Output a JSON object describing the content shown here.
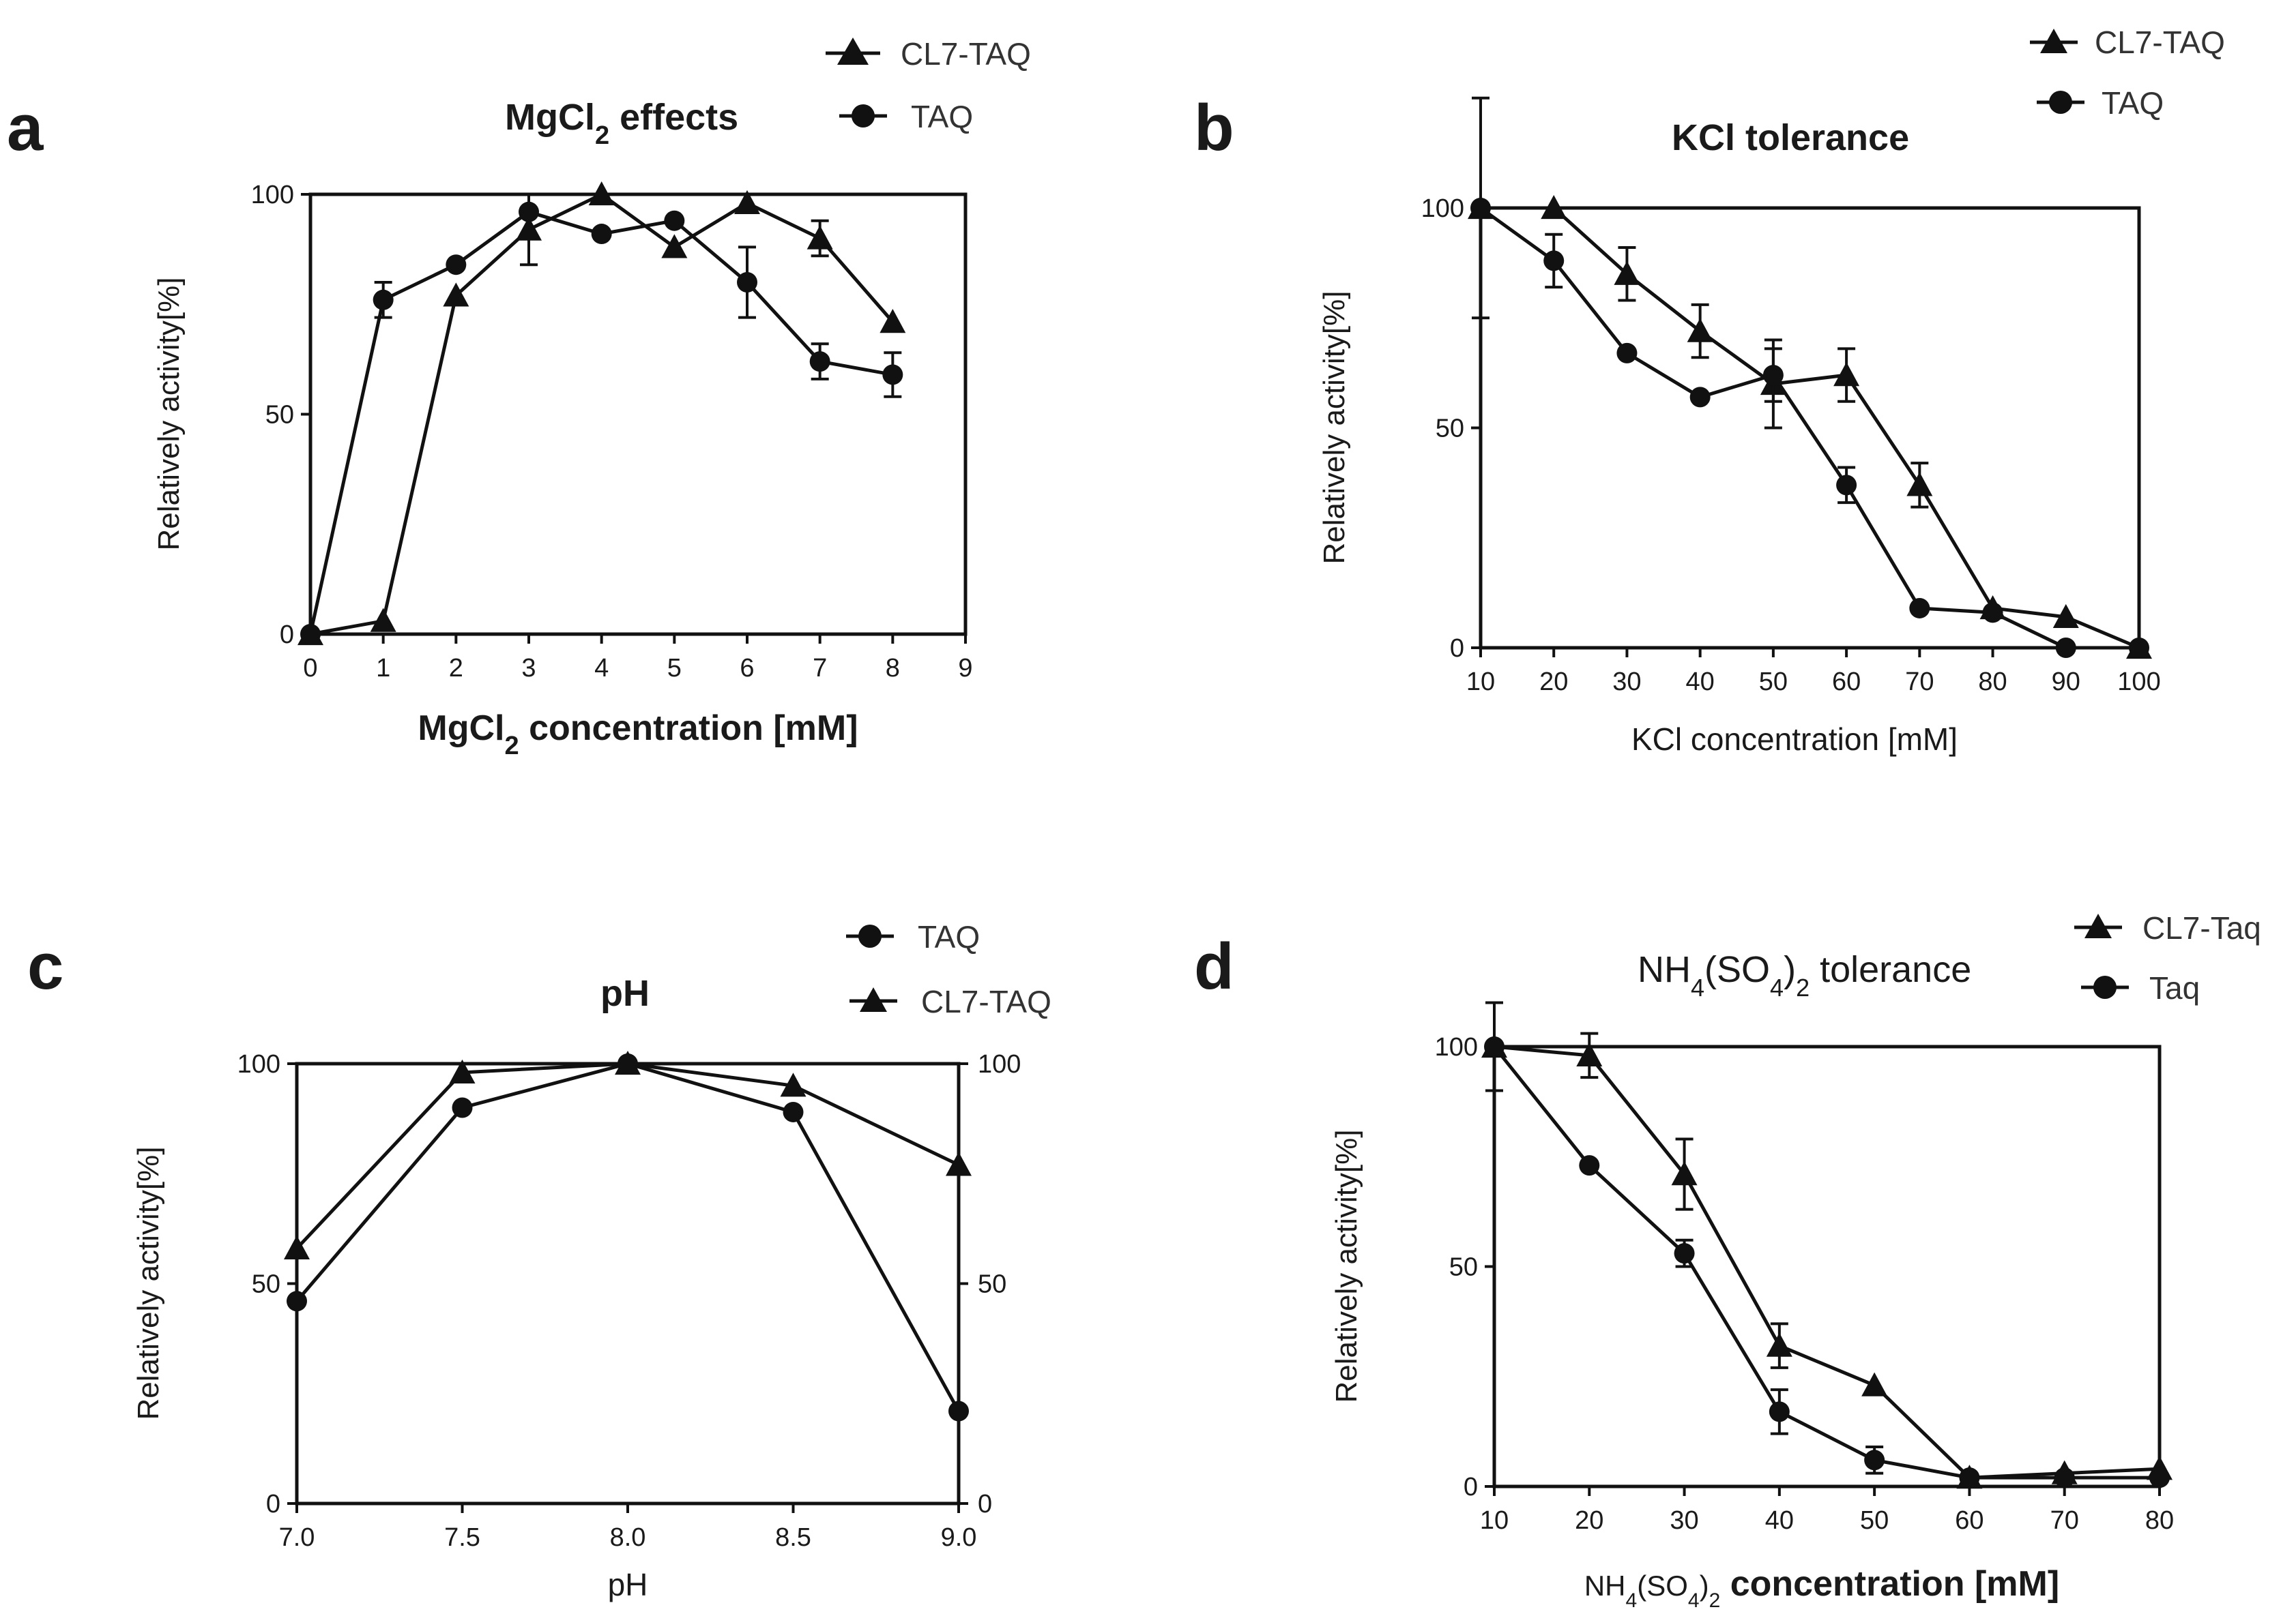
{
  "chart_data": [
    {
      "panel": "a",
      "type": "line",
      "title": "MgCl2 effects",
      "title_parts": {
        "pre": "MgCl",
        "sub": "2",
        "post": " effects"
      },
      "xlabel": "MgCl2 concentration [mM]",
      "xlabel_parts": {
        "pre": "MgCl",
        "sub": "2",
        "post": " concentration [mM]"
      },
      "ylabel": "Relatively activity[%]",
      "xlim": [
        0,
        9
      ],
      "ylim": [
        0,
        100
      ],
      "xticks": [
        0,
        1,
        2,
        3,
        4,
        5,
        6,
        7,
        8,
        9
      ],
      "yticks": [
        0,
        50,
        100
      ],
      "legend_position": "top",
      "series": [
        {
          "name": "CL7-TAQ",
          "marker": "triangle",
          "x": [
            0,
            1,
            2,
            3,
            4,
            5,
            6,
            7,
            8
          ],
          "y": [
            0,
            3,
            77,
            92,
            100,
            88,
            98,
            90,
            71
          ],
          "err": [
            0,
            0,
            0,
            8,
            0,
            0,
            0,
            4,
            0
          ]
        },
        {
          "name": "TAQ",
          "marker": "circle",
          "x": [
            0,
            1,
            2,
            3,
            4,
            5,
            6,
            7,
            8
          ],
          "y": [
            0,
            76,
            84,
            96,
            91,
            94,
            80,
            62,
            59
          ],
          "err": [
            0,
            4,
            0,
            0,
            0,
            0,
            8,
            4,
            5
          ]
        }
      ]
    },
    {
      "panel": "b",
      "type": "line",
      "title": "KCl tolerance",
      "xlabel": "KCl concentration [mM]",
      "ylabel": "Relatively activity[%]",
      "xlim": [
        10,
        100
      ],
      "ylim": [
        0,
        100
      ],
      "xticks": [
        10,
        20,
        30,
        40,
        50,
        60,
        70,
        80,
        90,
        100
      ],
      "yticks": [
        0,
        50,
        100
      ],
      "legend_position": "top-right",
      "series": [
        {
          "name": "CL7-TAQ",
          "marker": "triangle",
          "x": [
            10,
            20,
            30,
            40,
            50,
            60,
            70,
            80,
            90,
            100
          ],
          "y": [
            100,
            100,
            85,
            72,
            60,
            62,
            37,
            9,
            7,
            0
          ],
          "err": [
            25,
            0,
            6,
            6,
            10,
            6,
            5,
            0,
            0,
            0
          ]
        },
        {
          "name": "TAQ",
          "marker": "circle",
          "x": [
            10,
            20,
            30,
            40,
            50,
            60,
            70,
            80,
            90,
            100
          ],
          "y": [
            100,
            88,
            67,
            57,
            62,
            37,
            9,
            8,
            0,
            0
          ],
          "err": [
            0,
            6,
            0,
            0,
            6,
            4,
            0,
            0,
            0,
            0
          ]
        }
      ]
    },
    {
      "panel": "c",
      "type": "line",
      "title": "pH",
      "xlabel": "pH",
      "ylabel": "Relatively activity[%]",
      "xlim": [
        7.0,
        9.0
      ],
      "ylim": [
        0,
        100
      ],
      "xticks": [
        "7.0",
        "7.5",
        "8.0",
        "8.5",
        "9.0"
      ],
      "yticks": [
        0,
        50,
        100
      ],
      "legend_position": "top-right",
      "series": [
        {
          "name": "TAQ",
          "marker": "circle",
          "x": [
            7.0,
            7.5,
            8.0,
            8.5,
            9.0
          ],
          "y": [
            46,
            90,
            100,
            89,
            21
          ],
          "err": [
            0,
            0,
            0,
            0,
            0
          ]
        },
        {
          "name": "CL7-TAQ",
          "marker": "triangle",
          "x": [
            7.0,
            7.5,
            8.0,
            8.5,
            9.0
          ],
          "y": [
            58,
            98,
            100,
            95,
            77
          ],
          "err": [
            0,
            0,
            0,
            0,
            0
          ]
        }
      ]
    },
    {
      "panel": "d",
      "type": "line",
      "title": "NH4(SO4)2 tolerance",
      "title_parts": {
        "a": "NH",
        "s1": "4",
        "b": "(SO",
        "s2": "4",
        "c": ")",
        "s3": "2",
        "d": " tolerance"
      },
      "xlabel": "NH4(SO4)2 concentration [mM]",
      "xlabel_parts": {
        "a": "NH",
        "s1": "4",
        "b": "(SO",
        "s2": "4",
        "c": ")",
        "s3": "2",
        "d": " concentration [mM]"
      },
      "ylabel": "Relatively activity[%]",
      "xlim": [
        10,
        80
      ],
      "ylim": [
        0,
        100
      ],
      "xticks": [
        10,
        20,
        30,
        40,
        50,
        60,
        70,
        80
      ],
      "yticks": [
        0,
        50,
        100
      ],
      "legend_position": "top-right",
      "series": [
        {
          "name": "CL7-Taq",
          "marker": "triangle",
          "x": [
            10,
            20,
            30,
            40,
            50,
            60,
            70,
            80
          ],
          "y": [
            100,
            98,
            71,
            32,
            23,
            2,
            3,
            4
          ],
          "err": [
            10,
            5,
            8,
            5,
            0,
            0,
            0,
            0
          ]
        },
        {
          "name": "Taq",
          "marker": "circle",
          "x": [
            10,
            20,
            30,
            40,
            50,
            60,
            70,
            80
          ],
          "y": [
            100,
            73,
            53,
            17,
            6,
            2,
            2,
            2
          ],
          "err": [
            0,
            0,
            3,
            5,
            3,
            0,
            0,
            0
          ]
        }
      ]
    }
  ]
}
